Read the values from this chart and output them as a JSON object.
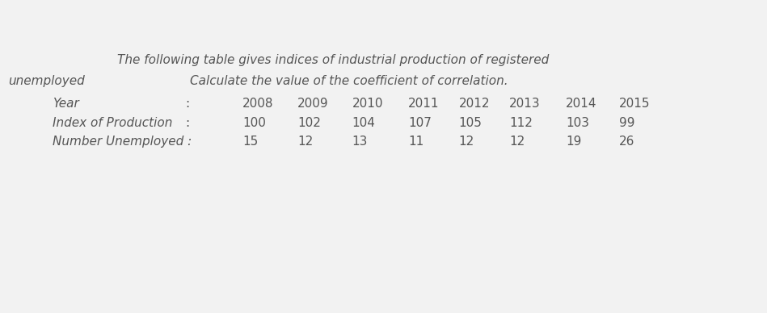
{
  "title_line1": "The following table gives indices of industrial production of registered",
  "title_line2_left": "unemployed",
  "title_line2_right": "Calculate the value of the coefficient of correlation.",
  "title_dot": "·",
  "row1_label": "Year",
  "row1_colon": ":",
  "row1_values": [
    "2008",
    "2009",
    "2010",
    "2011",
    "2012",
    "2013",
    "2014",
    "2015"
  ],
  "row2_label": "Index of Production",
  "row2_colon": ":",
  "row2_values": [
    "100",
    "102",
    "104",
    "107",
    "105",
    "112",
    "103",
    "99"
  ],
  "row3_label": "Number Unemployed :",
  "row3_values": [
    "15",
    "12",
    "13",
    "11",
    "12",
    "12",
    "19",
    "26"
  ],
  "bg_color": "#f2f2f2",
  "text_color": "#555555",
  "font_size": 11.0
}
